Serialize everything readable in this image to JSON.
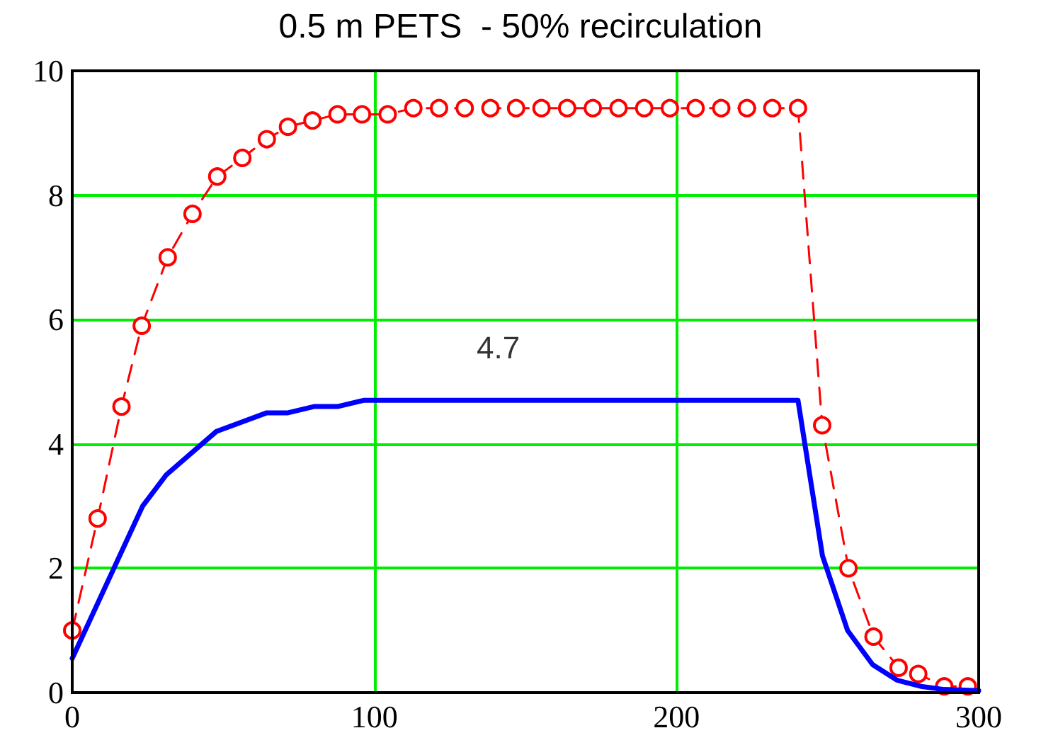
{
  "chart_data": {
    "type": "line",
    "title": "0.5 m PETS  - 50% recirculation",
    "xlim": [
      0,
      300
    ],
    "xticks": [
      0,
      100,
      200,
      300
    ],
    "ylim": [
      0,
      10
    ],
    "yticks": [
      0,
      2,
      4,
      6,
      8,
      10
    ],
    "grid": true,
    "annotations": [
      {
        "text": "4.7",
        "x": 141,
        "y": 4.7
      }
    ],
    "series": [
      {
        "color": "#ff0000",
        "marker": "circle",
        "line_style": "dashed",
        "x": [
          0,
          8.4,
          16.3,
          23,
          31.6,
          39.8,
          48,
          56.3,
          64.4,
          71.4,
          79.5,
          87.8,
          95.9,
          104.4,
          112.9,
          121.4,
          129.9,
          138.4,
          146.9,
          155.3,
          163.8,
          172.3,
          180.8,
          189.3,
          197.8,
          206.3,
          214.8,
          223.3,
          231.7,
          240.2,
          248.2,
          256.9,
          265.2,
          273.5,
          280,
          288.6,
          296.4
        ],
        "values": [
          1.0,
          2.8,
          4.6,
          5.9,
          7.0,
          7.7,
          8.3,
          8.6,
          8.9,
          9.1,
          9.2,
          9.3,
          9.3,
          9.3,
          9.4,
          9.4,
          9.4,
          9.4,
          9.4,
          9.4,
          9.4,
          9.4,
          9.4,
          9.4,
          9.4,
          9.4,
          9.4,
          9.4,
          9.4,
          9.4,
          4.3,
          2.0,
          0.9,
          0.4,
          0.3,
          0.1,
          0.1
        ]
      },
      {
        "color": "#0000ff",
        "marker": "none",
        "line_style": "solid",
        "x": [
          0,
          23.3,
          31.1,
          47.7,
          64.4,
          71.4,
          80,
          87.8,
          96.4,
          105,
          112,
          240.2,
          248.3,
          256.6,
          264.9,
          273,
          280.9,
          288.6,
          300
        ],
        "values": [
          0.55,
          3.0,
          3.5,
          4.2,
          4.5,
          4.5,
          4.6,
          4.6,
          4.7,
          4.7,
          4.7,
          4.7,
          2.2,
          1.0,
          0.45,
          0.2,
          0.1,
          0.05,
          0.03
        ]
      }
    ]
  }
}
